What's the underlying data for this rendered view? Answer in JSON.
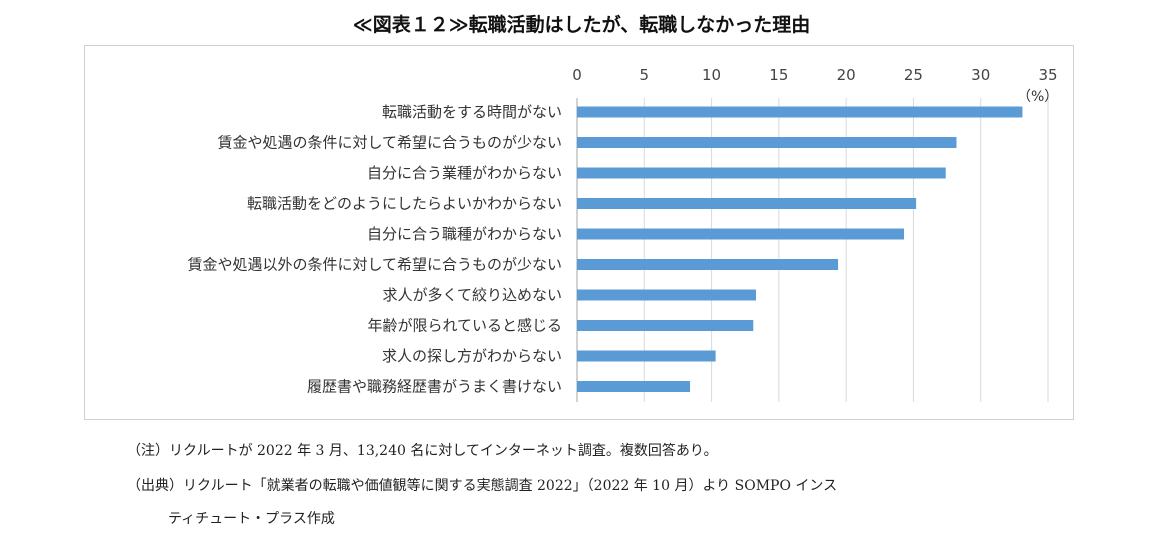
{
  "chart_data": {
    "type": "bar",
    "orientation": "horizontal",
    "title": "≪図表１２≫転職活動はしたが、転職しなかった理由",
    "unit": "（%）",
    "categories": [
      "転職活動をする時間がない",
      "賃金や処遇の条件に対して希望に合うものが少ない",
      "自分に合う業種がわからない",
      "転職活動をどのようにしたらよいかわからない",
      "自分に合う職種がわからない",
      "賃金や処遇以外の条件に対して希望に合うものが少ない",
      "求人が多くて絞り込めない",
      "年齢が限られていると感じる",
      "求人の探し方がわからない",
      "履歴書や職務経歴書がうまく書けない"
    ],
    "values": [
      33.1,
      28.2,
      27.4,
      25.2,
      24.3,
      19.4,
      13.3,
      13.1,
      10.3,
      8.4
    ],
    "xlim": [
      0,
      35
    ],
    "xticks": [
      0,
      5,
      10,
      15,
      20,
      25,
      30,
      35
    ],
    "x_axis_position": "top",
    "grid": true,
    "bar_color": "#5b9bd5",
    "grid_color": "#d9d9d9"
  },
  "notes": {
    "note1": "（注）リクルートが 2022 年 3 月、13,240 名に対してインターネット調査。複数回答あり。",
    "note2": "（出典）リクルート「就業者の転職や価値観等に関する実態調査 2022」（2022 年 10 月）より SOMPO インス",
    "note3": "ティチュート・プラス作成"
  }
}
